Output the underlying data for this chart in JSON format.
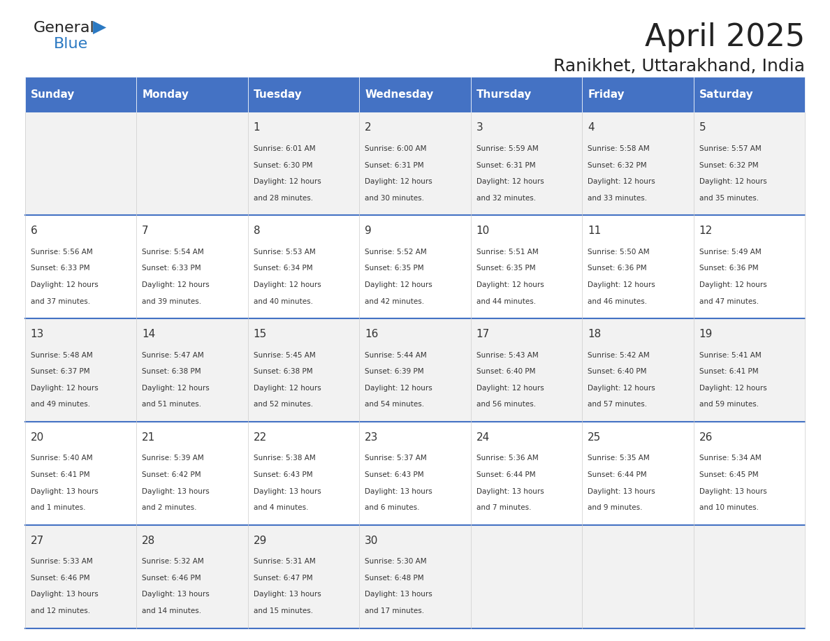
{
  "title": "April 2025",
  "subtitle": "Ranikhet, Uttarakhand, India",
  "days_of_week": [
    "Sunday",
    "Monday",
    "Tuesday",
    "Wednesday",
    "Thursday",
    "Friday",
    "Saturday"
  ],
  "header_bg": "#4472C4",
  "header_text": "#FFFFFF",
  "row_bg_even": "#F2F2F2",
  "row_bg_odd": "#FFFFFF",
  "separator_color": "#4472C4",
  "day_number_color": "#333333",
  "cell_text_color": "#333333",
  "title_color": "#222222",
  "subtitle_color": "#222222",
  "logo_general_color": "#222222",
  "logo_blue_color": "#2B79C2",
  "calendar_data": [
    {
      "day": 1,
      "col": 2,
      "row": 0,
      "sunrise": "6:01 AM",
      "sunset": "6:30 PM",
      "daylight_hours": 12,
      "daylight_minutes": 28
    },
    {
      "day": 2,
      "col": 3,
      "row": 0,
      "sunrise": "6:00 AM",
      "sunset": "6:31 PM",
      "daylight_hours": 12,
      "daylight_minutes": 30
    },
    {
      "day": 3,
      "col": 4,
      "row": 0,
      "sunrise": "5:59 AM",
      "sunset": "6:31 PM",
      "daylight_hours": 12,
      "daylight_minutes": 32
    },
    {
      "day": 4,
      "col": 5,
      "row": 0,
      "sunrise": "5:58 AM",
      "sunset": "6:32 PM",
      "daylight_hours": 12,
      "daylight_minutes": 33
    },
    {
      "day": 5,
      "col": 6,
      "row": 0,
      "sunrise": "5:57 AM",
      "sunset": "6:32 PM",
      "daylight_hours": 12,
      "daylight_minutes": 35
    },
    {
      "day": 6,
      "col": 0,
      "row": 1,
      "sunrise": "5:56 AM",
      "sunset": "6:33 PM",
      "daylight_hours": 12,
      "daylight_minutes": 37
    },
    {
      "day": 7,
      "col": 1,
      "row": 1,
      "sunrise": "5:54 AM",
      "sunset": "6:33 PM",
      "daylight_hours": 12,
      "daylight_minutes": 39
    },
    {
      "day": 8,
      "col": 2,
      "row": 1,
      "sunrise": "5:53 AM",
      "sunset": "6:34 PM",
      "daylight_hours": 12,
      "daylight_minutes": 40
    },
    {
      "day": 9,
      "col": 3,
      "row": 1,
      "sunrise": "5:52 AM",
      "sunset": "6:35 PM",
      "daylight_hours": 12,
      "daylight_minutes": 42
    },
    {
      "day": 10,
      "col": 4,
      "row": 1,
      "sunrise": "5:51 AM",
      "sunset": "6:35 PM",
      "daylight_hours": 12,
      "daylight_minutes": 44
    },
    {
      "day": 11,
      "col": 5,
      "row": 1,
      "sunrise": "5:50 AM",
      "sunset": "6:36 PM",
      "daylight_hours": 12,
      "daylight_minutes": 46
    },
    {
      "day": 12,
      "col": 6,
      "row": 1,
      "sunrise": "5:49 AM",
      "sunset": "6:36 PM",
      "daylight_hours": 12,
      "daylight_minutes": 47
    },
    {
      "day": 13,
      "col": 0,
      "row": 2,
      "sunrise": "5:48 AM",
      "sunset": "6:37 PM",
      "daylight_hours": 12,
      "daylight_minutes": 49
    },
    {
      "day": 14,
      "col": 1,
      "row": 2,
      "sunrise": "5:47 AM",
      "sunset": "6:38 PM",
      "daylight_hours": 12,
      "daylight_minutes": 51
    },
    {
      "day": 15,
      "col": 2,
      "row": 2,
      "sunrise": "5:45 AM",
      "sunset": "6:38 PM",
      "daylight_hours": 12,
      "daylight_minutes": 52
    },
    {
      "day": 16,
      "col": 3,
      "row": 2,
      "sunrise": "5:44 AM",
      "sunset": "6:39 PM",
      "daylight_hours": 12,
      "daylight_minutes": 54
    },
    {
      "day": 17,
      "col": 4,
      "row": 2,
      "sunrise": "5:43 AM",
      "sunset": "6:40 PM",
      "daylight_hours": 12,
      "daylight_minutes": 56
    },
    {
      "day": 18,
      "col": 5,
      "row": 2,
      "sunrise": "5:42 AM",
      "sunset": "6:40 PM",
      "daylight_hours": 12,
      "daylight_minutes": 57
    },
    {
      "day": 19,
      "col": 6,
      "row": 2,
      "sunrise": "5:41 AM",
      "sunset": "6:41 PM",
      "daylight_hours": 12,
      "daylight_minutes": 59
    },
    {
      "day": 20,
      "col": 0,
      "row": 3,
      "sunrise": "5:40 AM",
      "sunset": "6:41 PM",
      "daylight_hours": 13,
      "daylight_minutes": 1
    },
    {
      "day": 21,
      "col": 1,
      "row": 3,
      "sunrise": "5:39 AM",
      "sunset": "6:42 PM",
      "daylight_hours": 13,
      "daylight_minutes": 2
    },
    {
      "day": 22,
      "col": 2,
      "row": 3,
      "sunrise": "5:38 AM",
      "sunset": "6:43 PM",
      "daylight_hours": 13,
      "daylight_minutes": 4
    },
    {
      "day": 23,
      "col": 3,
      "row": 3,
      "sunrise": "5:37 AM",
      "sunset": "6:43 PM",
      "daylight_hours": 13,
      "daylight_minutes": 6
    },
    {
      "day": 24,
      "col": 4,
      "row": 3,
      "sunrise": "5:36 AM",
      "sunset": "6:44 PM",
      "daylight_hours": 13,
      "daylight_minutes": 7
    },
    {
      "day": 25,
      "col": 5,
      "row": 3,
      "sunrise": "5:35 AM",
      "sunset": "6:44 PM",
      "daylight_hours": 13,
      "daylight_minutes": 9
    },
    {
      "day": 26,
      "col": 6,
      "row": 3,
      "sunrise": "5:34 AM",
      "sunset": "6:45 PM",
      "daylight_hours": 13,
      "daylight_minutes": 10
    },
    {
      "day": 27,
      "col": 0,
      "row": 4,
      "sunrise": "5:33 AM",
      "sunset": "6:46 PM",
      "daylight_hours": 13,
      "daylight_minutes": 12
    },
    {
      "day": 28,
      "col": 1,
      "row": 4,
      "sunrise": "5:32 AM",
      "sunset": "6:46 PM",
      "daylight_hours": 13,
      "daylight_minutes": 14
    },
    {
      "day": 29,
      "col": 2,
      "row": 4,
      "sunrise": "5:31 AM",
      "sunset": "6:47 PM",
      "daylight_hours": 13,
      "daylight_minutes": 15
    },
    {
      "day": 30,
      "col": 3,
      "row": 4,
      "sunrise": "5:30 AM",
      "sunset": "6:48 PM",
      "daylight_hours": 13,
      "daylight_minutes": 17
    }
  ]
}
